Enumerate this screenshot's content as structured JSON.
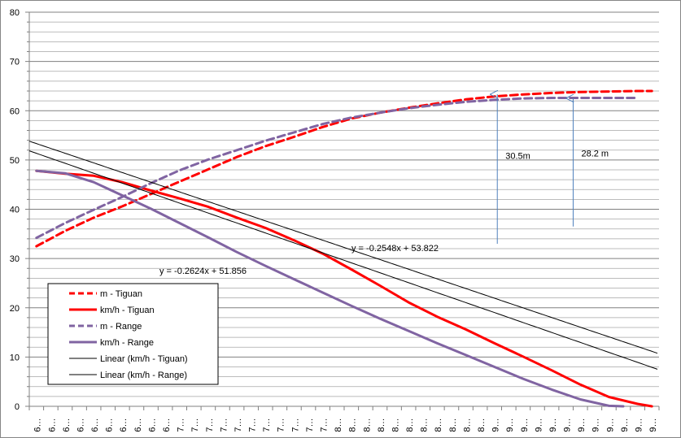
{
  "chart_data": {
    "type": "line",
    "title": "",
    "xlabel": "",
    "ylabel": "",
    "ylim": [
      0,
      80
    ],
    "y_ticks": [
      "0",
      "10",
      "20",
      "30",
      "40",
      "50",
      "60",
      "70",
      "80"
    ],
    "x_tick_count": 44,
    "x_tick_label": "6…",
    "x_tick_labels": [
      "6…",
      "6…",
      "6…",
      "6…",
      "6…",
      "6…",
      "6…",
      "6…",
      "6…",
      "6…",
      "7…",
      "7…",
      "7…",
      "7…",
      "7…",
      "7…",
      "7…",
      "7…",
      "7…",
      "7…",
      "7…",
      "8…",
      "8…",
      "8…",
      "8…",
      "8…",
      "8…",
      "8…",
      "8…",
      "8…",
      "8…",
      "8…",
      "9…",
      "9…",
      "9…",
      "9…",
      "9…",
      "9…",
      "9…",
      "9…",
      "9…",
      "9…",
      "9…",
      "9…"
    ],
    "grid": true,
    "legend_position": "bottom-left",
    "series": [
      {
        "name": "m - Tiguan",
        "color": "#ff0000",
        "style": "dashed",
        "x": [
          0,
          2,
          4,
          6,
          8,
          10,
          12,
          14,
          16,
          18,
          20,
          22,
          24,
          26,
          28,
          30,
          32,
          34,
          36,
          38,
          40,
          42,
          43
        ],
        "values": [
          32.5,
          35.6,
          38.3,
          40.6,
          43.1,
          45.6,
          48.1,
          50.6,
          52.8,
          54.7,
          56.7,
          58.4,
          59.6,
          60.6,
          61.5,
          62.3,
          62.9,
          63.3,
          63.6,
          63.8,
          63.9,
          64.0,
          64.0
        ]
      },
      {
        "name": "km/h - Tiguan",
        "color": "#ff0000",
        "style": "solid",
        "x": [
          0,
          2,
          4,
          6,
          8,
          10,
          12,
          14,
          16,
          18,
          20,
          22,
          24,
          26,
          28,
          30,
          32,
          34,
          36,
          38,
          40,
          42,
          43
        ],
        "values": [
          47.8,
          47.2,
          46.8,
          45.5,
          43.8,
          42.2,
          40.5,
          38.3,
          36.2,
          33.7,
          31.0,
          27.8,
          24.5,
          21.1,
          18.2,
          15.6,
          12.8,
          10.1,
          7.3,
          4.4,
          1.9,
          0.5,
          0.0
        ]
      },
      {
        "name": "m - Range",
        "color": "#8064a2",
        "style": "dashed",
        "x": [
          0,
          2,
          4,
          6,
          8,
          10,
          12,
          14,
          16,
          18,
          20,
          22,
          24,
          26,
          28,
          30,
          32,
          34,
          36,
          38,
          40,
          42
        ],
        "values": [
          34.2,
          37.2,
          39.9,
          42.5,
          45.3,
          47.9,
          50.1,
          52.0,
          53.9,
          55.6,
          57.3,
          58.6,
          59.6,
          60.5,
          61.2,
          61.8,
          62.2,
          62.5,
          62.6,
          62.6,
          62.6,
          62.6
        ]
      },
      {
        "name": "km/h - Range",
        "color": "#8064a2",
        "style": "solid",
        "x": [
          0,
          2,
          4,
          6,
          8,
          10,
          12,
          14,
          16,
          18,
          20,
          22,
          24,
          26,
          28,
          30,
          32,
          34,
          36,
          38,
          40,
          41
        ],
        "values": [
          47.8,
          47.3,
          45.5,
          42.8,
          40.1,
          37.2,
          34.3,
          31.3,
          28.5,
          25.8,
          23.1,
          20.4,
          17.8,
          15.3,
          12.8,
          10.4,
          8.0,
          5.6,
          3.4,
          1.4,
          0.1,
          0.0
        ]
      },
      {
        "name": "Linear (km/h - Tiguan)",
        "color": "#000000",
        "style": "trend",
        "slope": -0.2548,
        "intercept": 53.822,
        "equation_label": "y = -0.2548x + 53.822"
      },
      {
        "name": "Linear (km/h - Range)",
        "color": "#000000",
        "style": "trend",
        "slope": -0.2624,
        "intercept": 51.856,
        "equation_label": "y = -0.2624x + 51.856"
      }
    ],
    "trend_x_unit_per_category": 4.57,
    "annotations": [
      {
        "text": "30.5m",
        "x": 32.2,
        "y_from": 33.0,
        "y_to": 63.5
      },
      {
        "text": "28.2 m",
        "x": 37.5,
        "y_from": 36.5,
        "y_to": 62.7
      }
    ]
  }
}
